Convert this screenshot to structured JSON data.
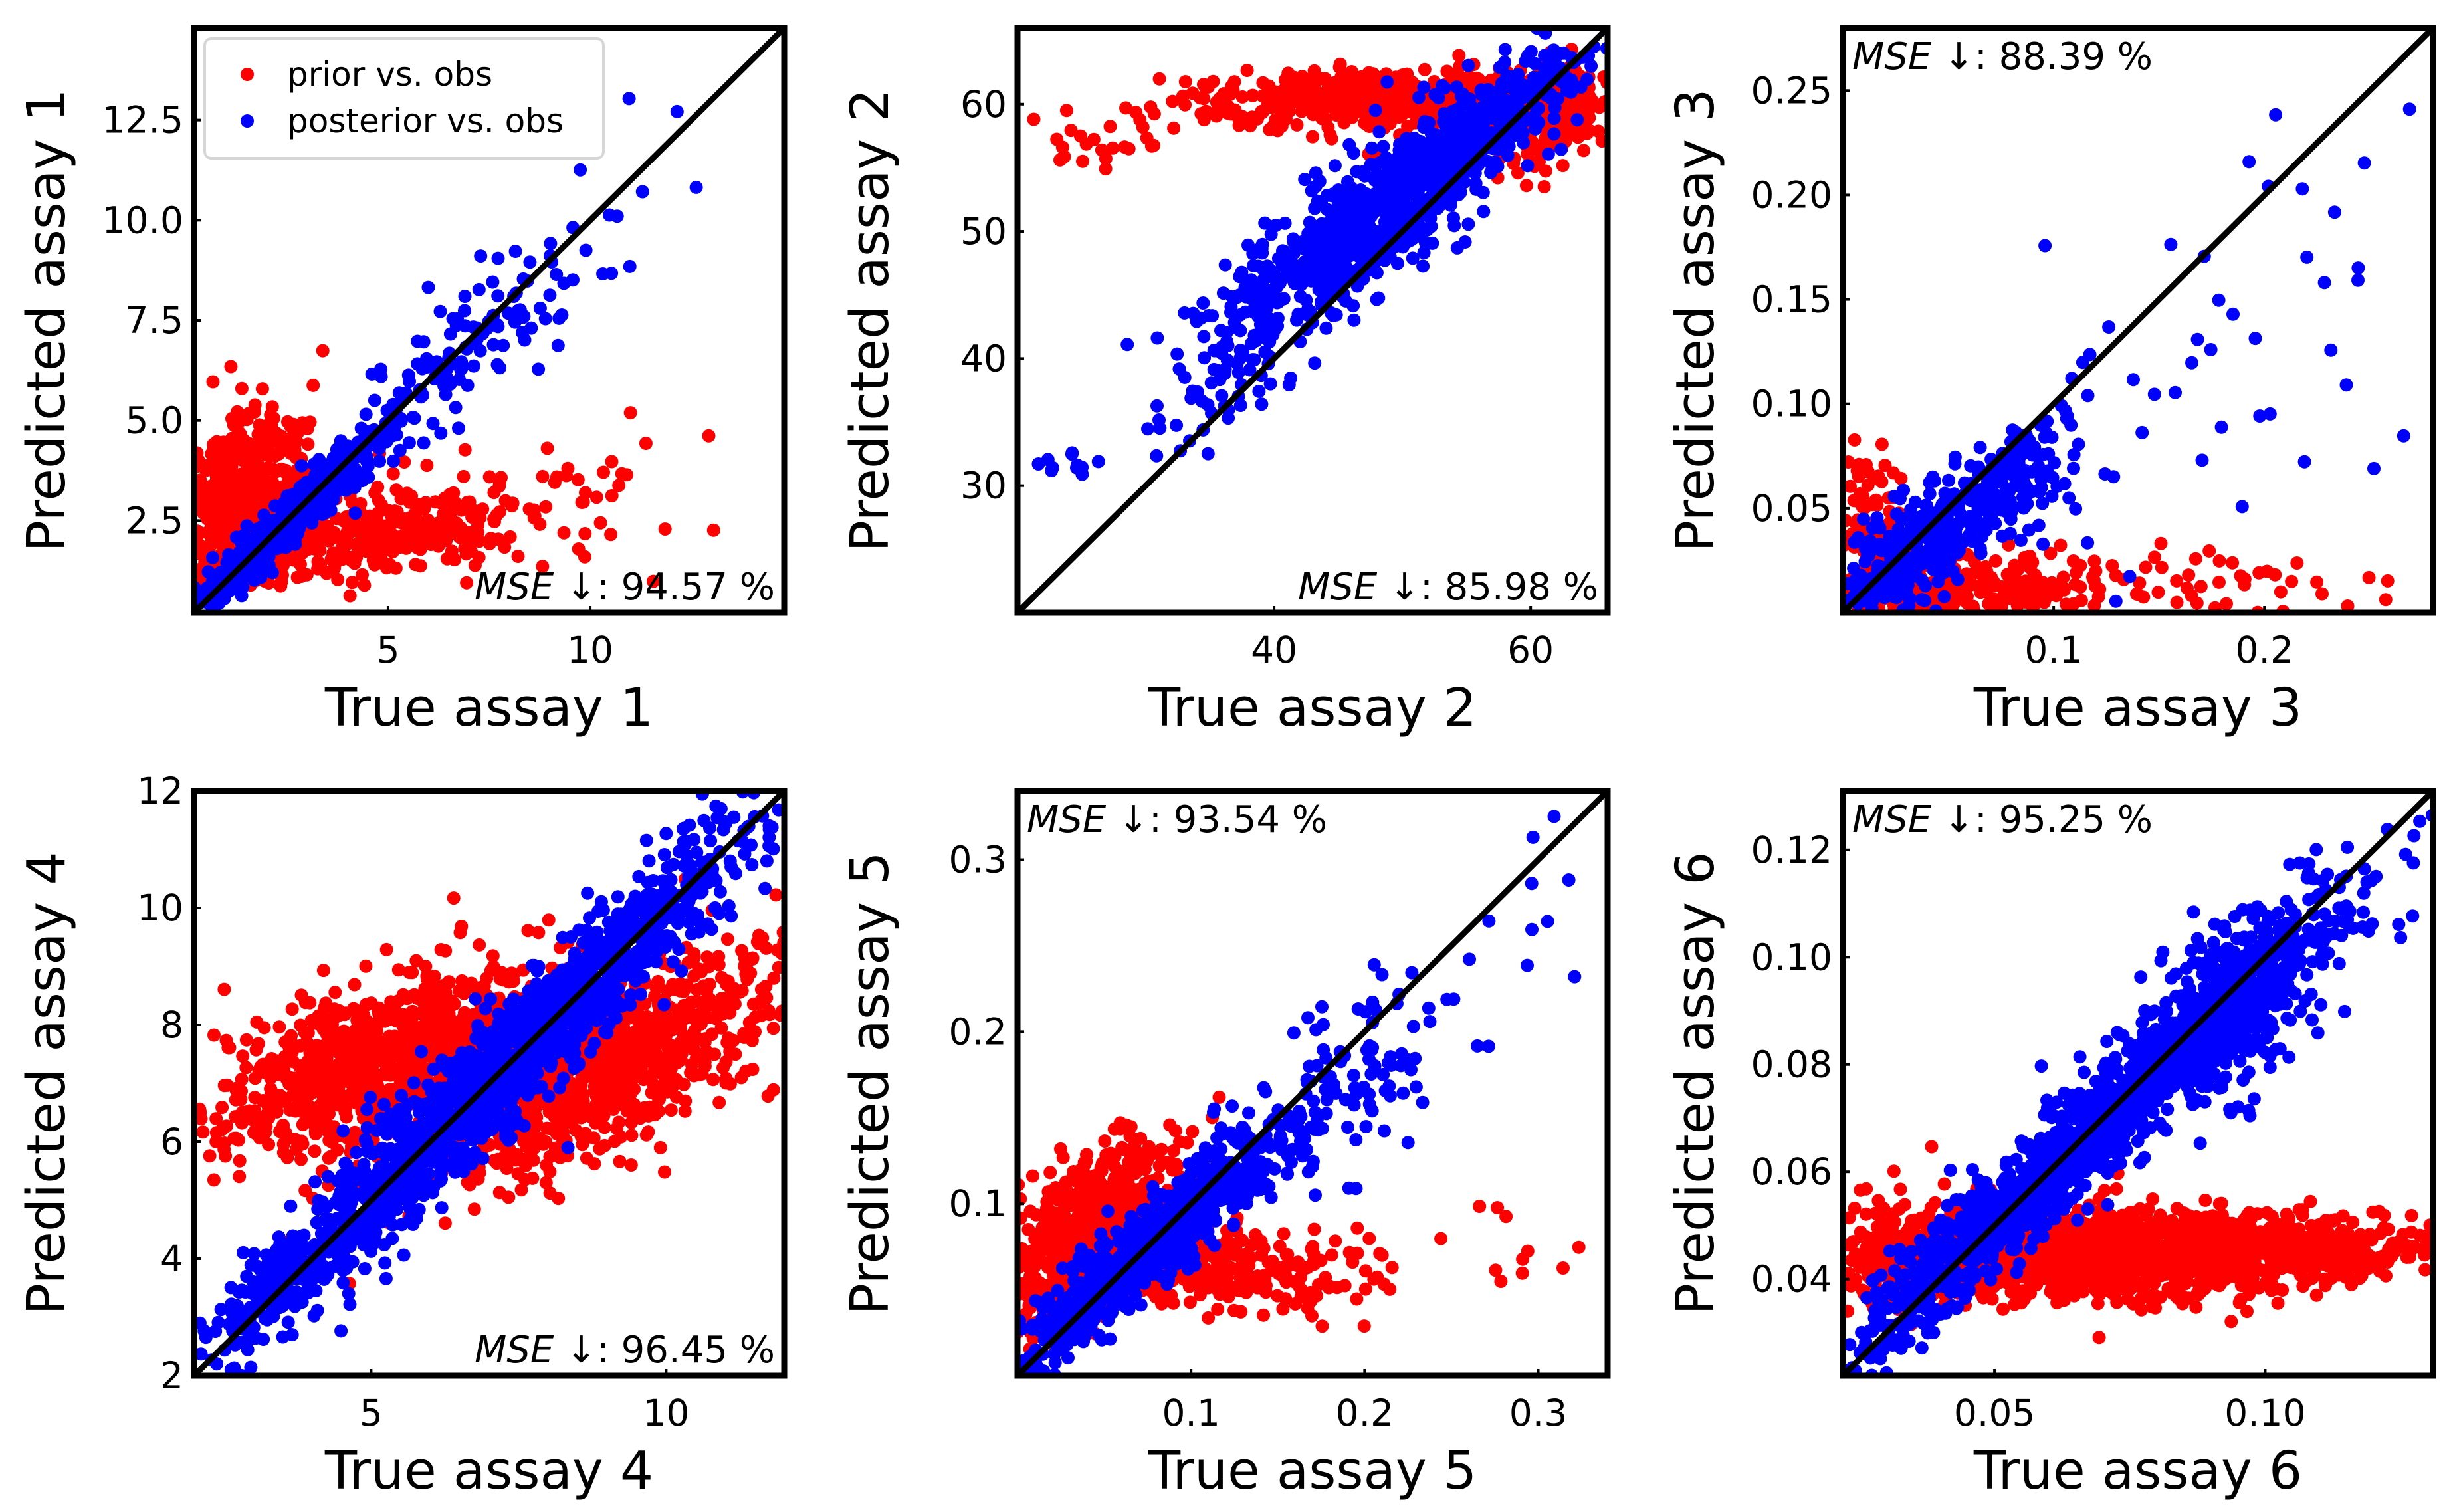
{
  "colors": {
    "prior": "#ff0000",
    "posterior": "#0000ff",
    "diagonal": "#000000"
  },
  "chart_data": [
    {
      "type": "scatter",
      "panel": "assay-1",
      "xlabel": "True assay 1",
      "ylabel": "Predicted assay 1",
      "xlim": [
        0.2,
        14.8
      ],
      "ylim": [
        0.2,
        14.8
      ],
      "xticks": [
        5,
        10
      ],
      "xtick_labels": [
        "5",
        "10"
      ],
      "yticks": [
        2.5,
        5.0,
        7.5,
        10.0,
        12.5
      ],
      "ytick_labels": [
        "2.5",
        "5.0",
        "7.5",
        "10.0",
        "12.5"
      ],
      "legend": {
        "placement": "top-left",
        "entries": [
          "prior vs. obs",
          "posterior vs. obs"
        ]
      },
      "mse": {
        "label": "MSE",
        "arrow": "↓",
        "value": "94.57 %",
        "placement": "bottom-right"
      },
      "series": [
        {
          "name": "prior vs. obs",
          "clusters": [
            {
              "cx": 1.4,
              "cy": 3.0,
              "sx": 0.8,
              "sy": 1.1,
              "n": 500,
              "corr": 0.3
            },
            {
              "cx": 4.5,
              "cy": 2.1,
              "sx": 2.0,
              "sy": 0.6,
              "n": 380,
              "corr": 0.6
            },
            {
              "cx": 9.0,
              "cy": 3.0,
              "sx": 2.5,
              "sy": 1.0,
              "n": 40,
              "corr": 0.2
            }
          ]
        },
        {
          "name": "posterior vs. obs",
          "clusters": [
            {
              "cx": 2.5,
              "cy": 2.5,
              "sx": 1.3,
              "sy": 1.3,
              "n": 450,
              "corr": 0.96
            },
            {
              "cx": 7.0,
              "cy": 6.8,
              "sx": 1.4,
              "sy": 1.5,
              "n": 110,
              "corr": 0.75
            },
            {
              "cx": 10.5,
              "cy": 9.5,
              "sx": 1.8,
              "sy": 2.0,
              "n": 12,
              "corr": 0.6
            }
          ]
        }
      ]
    },
    {
      "type": "scatter",
      "panel": "assay-2",
      "xlabel": "True assay 2",
      "ylabel": "Predicted assay 2",
      "xlim": [
        20,
        66
      ],
      "ylim": [
        20,
        66
      ],
      "xticks": [
        40,
        60
      ],
      "xtick_labels": [
        "40",
        "60"
      ],
      "yticks": [
        30,
        40,
        50,
        60
      ],
      "ytick_labels": [
        "30",
        "40",
        "50",
        "60"
      ],
      "mse": {
        "label": "MSE",
        "arrow": "↓",
        "value": "85.98 %",
        "placement": "bottom-right"
      },
      "series": [
        {
          "name": "prior vs. obs",
          "clusters": [
            {
              "cx": 50.0,
              "cy": 60.5,
              "sx": 7.0,
              "sy": 1.1,
              "n": 650,
              "corr": 0.15
            },
            {
              "cx": 61.5,
              "cy": 58.5,
              "sx": 2.5,
              "sy": 2.0,
              "n": 160,
              "corr": 0.3
            },
            {
              "cx": 27.0,
              "cy": 57.5,
              "sx": 3.0,
              "sy": 1.2,
              "n": 25,
              "corr": 0.0
            }
          ]
        },
        {
          "name": "posterior vs. obs",
          "clusters": [
            {
              "cx": 47.0,
              "cy": 50.5,
              "sx": 6.0,
              "sy": 5.0,
              "n": 700,
              "corr": 0.85
            },
            {
              "cx": 57.0,
              "cy": 58.5,
              "sx": 4.0,
              "sy": 3.0,
              "n": 250,
              "corr": 0.8
            },
            {
              "cx": 36.0,
              "cy": 37.0,
              "sx": 3.0,
              "sy": 3.0,
              "n": 40,
              "corr": 0.7
            },
            {
              "cx": 24.0,
              "cy": 32.0,
              "sx": 2.5,
              "sy": 0.6,
              "n": 14,
              "corr": 0.0
            }
          ]
        }
      ]
    },
    {
      "type": "scatter",
      "panel": "assay-3",
      "xlabel": "True assay 3",
      "ylabel": "Predicted assay 3",
      "xlim": [
        0.0,
        0.28
      ],
      "ylim": [
        0.0,
        0.28
      ],
      "xticks": [
        0.1,
        0.2
      ],
      "xtick_labels": [
        "0.1",
        "0.2"
      ],
      "yticks": [
        0.05,
        0.1,
        0.15,
        0.2,
        0.25
      ],
      "ytick_labels": [
        "0.05",
        "0.10",
        "0.15",
        "0.20",
        "0.25"
      ],
      "mse": {
        "label": "MSE",
        "arrow": "↓",
        "value": "88.39 %",
        "placement": "top-left"
      },
      "series": [
        {
          "name": "prior vs. obs",
          "clusters": [
            {
              "cx": 0.055,
              "cy": 0.012,
              "sx": 0.04,
              "sy": 0.008,
              "n": 280,
              "corr": 0.1
            },
            {
              "cx": 0.012,
              "cy": 0.035,
              "sx": 0.01,
              "sy": 0.022,
              "n": 120,
              "corr": 0.0
            },
            {
              "cx": 0.2,
              "cy": 0.012,
              "sx": 0.045,
              "sy": 0.008,
              "n": 35,
              "corr": 0.0
            }
          ]
        },
        {
          "name": "posterior vs. obs",
          "clusters": [
            {
              "cx": 0.04,
              "cy": 0.035,
              "sx": 0.028,
              "sy": 0.026,
              "n": 380,
              "corr": 0.85
            },
            {
              "cx": 0.085,
              "cy": 0.065,
              "sx": 0.015,
              "sy": 0.015,
              "n": 70,
              "corr": 0.3
            },
            {
              "cx": 0.17,
              "cy": 0.11,
              "sx": 0.05,
              "sy": 0.06,
              "n": 45,
              "corr": 0.4
            }
          ]
        }
      ]
    },
    {
      "type": "scatter",
      "panel": "assay-4",
      "xlabel": "True assay 4",
      "ylabel": "Predicted assay 4",
      "xlim": [
        2,
        12
      ],
      "ylim": [
        2,
        12
      ],
      "xticks": [
        5,
        10
      ],
      "xtick_labels": [
        "5",
        "10"
      ],
      "yticks": [
        2,
        4,
        6,
        8,
        10,
        12
      ],
      "ytick_labels": [
        "2",
        "4",
        "6",
        "8",
        "10",
        "12"
      ],
      "mse": {
        "label": "MSE",
        "arrow": "↓",
        "value": "96.45 %",
        "placement": "bottom-right"
      },
      "series": [
        {
          "name": "prior vs. obs",
          "clusters": [
            {
              "cx": 5.2,
              "cy": 7.4,
              "sx": 1.5,
              "sy": 0.8,
              "n": 900,
              "corr": 0.55
            },
            {
              "cx": 8.9,
              "cy": 7.3,
              "sx": 1.6,
              "sy": 1.0,
              "n": 900,
              "corr": 0.7
            }
          ]
        },
        {
          "name": "posterior vs. obs",
          "clusters": [
            {
              "cx": 7.0,
              "cy": 7.0,
              "sx": 2.2,
              "sy": 2.2,
              "n": 1500,
              "corr": 0.97
            },
            {
              "cx": 3.3,
              "cy": 3.5,
              "sx": 0.5,
              "sy": 0.5,
              "n": 100,
              "corr": 0.8
            }
          ]
        }
      ]
    },
    {
      "type": "scatter",
      "panel": "assay-5",
      "xlabel": "True assay 5",
      "ylabel": "Predicted assay 5",
      "xlim": [
        0.0,
        0.34
      ],
      "ylim": [
        0.0,
        0.34
      ],
      "xticks": [
        0.1,
        0.2,
        0.3
      ],
      "xtick_labels": [
        "0.1",
        "0.2",
        "0.3"
      ],
      "yticks": [
        0.1,
        0.2,
        0.3
      ],
      "ytick_labels": [
        "0.1",
        "0.2",
        "0.3"
      ],
      "mse": {
        "label": "MSE",
        "arrow": "↓",
        "value": "93.54 %",
        "placement": "top-left"
      },
      "series": [
        {
          "name": "prior vs. obs",
          "clusters": [
            {
              "cx": 0.045,
              "cy": 0.085,
              "sx": 0.025,
              "sy": 0.025,
              "n": 650,
              "corr": 0.5
            },
            {
              "cx": 0.13,
              "cy": 0.06,
              "sx": 0.04,
              "sy": 0.012,
              "n": 220,
              "corr": 0.0
            },
            {
              "cx": 0.27,
              "cy": 0.075,
              "sx": 0.03,
              "sy": 0.015,
              "n": 12,
              "corr": 0.0
            }
          ]
        },
        {
          "name": "posterior vs. obs",
          "clusters": [
            {
              "cx": 0.07,
              "cy": 0.07,
              "sx": 0.05,
              "sy": 0.045,
              "n": 700,
              "corr": 0.95
            },
            {
              "cx": 0.19,
              "cy": 0.17,
              "sx": 0.03,
              "sy": 0.035,
              "n": 90,
              "corr": 0.6
            },
            {
              "cx": 0.29,
              "cy": 0.27,
              "sx": 0.03,
              "sy": 0.03,
              "n": 10,
              "corr": 0.3
            }
          ]
        }
      ]
    },
    {
      "type": "scatter",
      "panel": "assay-6",
      "xlabel": "True assay 6",
      "ylabel": "Predicted assay 6",
      "xlim": [
        0.022,
        0.131
      ],
      "ylim": [
        0.022,
        0.131
      ],
      "xticks": [
        0.05,
        0.1
      ],
      "xtick_labels": [
        "0.05",
        "0.10"
      ],
      "yticks": [
        0.04,
        0.06,
        0.08,
        0.1,
        0.12
      ],
      "ytick_labels": [
        "0.04",
        "0.06",
        "0.08",
        "0.10",
        "0.12"
      ],
      "mse": {
        "label": "MSE",
        "arrow": "↓",
        "value": "95.25 %",
        "placement": "top-left"
      },
      "series": [
        {
          "name": "prior vs. obs",
          "clusters": [
            {
              "cx": 0.072,
              "cy": 0.0445,
              "sx": 0.022,
              "sy": 0.004,
              "n": 1400,
              "corr": 0.1
            },
            {
              "cx": 0.035,
              "cy": 0.046,
              "sx": 0.008,
              "sy": 0.005,
              "n": 200,
              "corr": 0.0
            },
            {
              "cx": 0.112,
              "cy": 0.046,
              "sx": 0.009,
              "sy": 0.003,
              "n": 150,
              "corr": 0.0
            }
          ]
        },
        {
          "name": "posterior vs. obs",
          "clusters": [
            {
              "cx": 0.065,
              "cy": 0.065,
              "sx": 0.022,
              "sy": 0.021,
              "n": 1400,
              "corr": 0.97
            },
            {
              "cx": 0.093,
              "cy": 0.09,
              "sx": 0.008,
              "sy": 0.009,
              "n": 350,
              "corr": 0.5
            },
            {
              "cx": 0.11,
              "cy": 0.105,
              "sx": 0.008,
              "sy": 0.008,
              "n": 40,
              "corr": 0.4
            }
          ]
        }
      ]
    }
  ]
}
